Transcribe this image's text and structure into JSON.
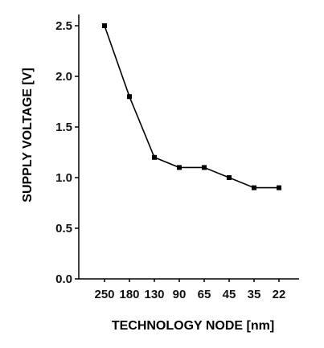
{
  "chart_data": {
    "type": "line",
    "title": "",
    "xlabel": "TECHNOLOGY NODE [nm]",
    "ylabel": "SUPPLY VOLTAGE [V]",
    "categories": [
      "250",
      "180",
      "130",
      "90",
      "65",
      "45",
      "35",
      "22"
    ],
    "series": [
      {
        "values": [
          2.5,
          1.8,
          1.2,
          1.1,
          1.1,
          1.0,
          0.9,
          0.9
        ]
      }
    ],
    "yticks": [
      "0.0",
      "0.5",
      "1.0",
      "1.5",
      "2.0",
      "2.5"
    ],
    "ylim": [
      0,
      2.5
    ],
    "grid": false,
    "legend": "none",
    "line_color": "#000000",
    "marker": "square"
  }
}
